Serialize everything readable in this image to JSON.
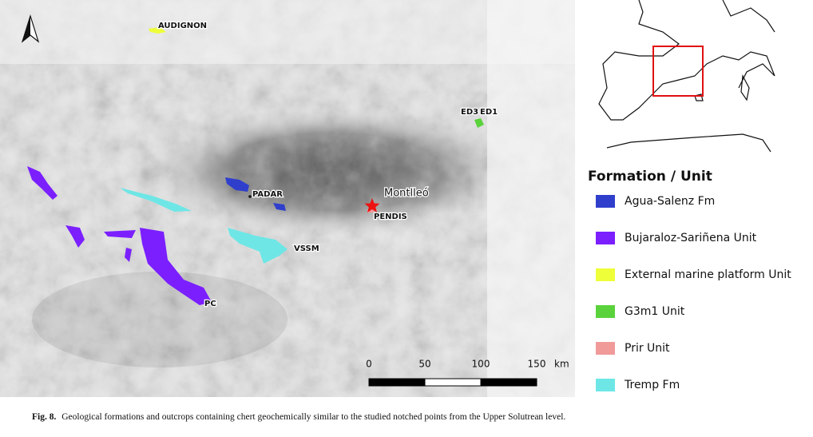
{
  "map": {
    "sites": [
      "AUDIGNON",
      "ED3",
      "ED1",
      "PADAR",
      "PENDIS",
      "VSSM",
      "PC"
    ],
    "reference_site": "Montlleó",
    "scale_bar": {
      "ticks": [
        0,
        50,
        100,
        150
      ],
      "unit": "km"
    }
  },
  "legend": {
    "title": "Formation / Unit",
    "items": [
      {
        "label": "Agua-Salenz Fm",
        "color": "#2f3fcc"
      },
      {
        "label": "Bujaraloz-Sariñena Unit",
        "color": "#7b1fff"
      },
      {
        "label": "External marine platform Unit",
        "color": "#eeff3a"
      },
      {
        "label": "G3m1 Unit",
        "color": "#5ad23c"
      },
      {
        "label": "Prir Unit",
        "color": "#f09a9a"
      },
      {
        "label": "Tremp Fm",
        "color": "#6ee6e6"
      }
    ]
  },
  "caption": {
    "label": "Fig. 8.",
    "text": "Geological formations and outcrops containing chert geochemically similar to the studied notched points from the Upper Solutrean level."
  }
}
